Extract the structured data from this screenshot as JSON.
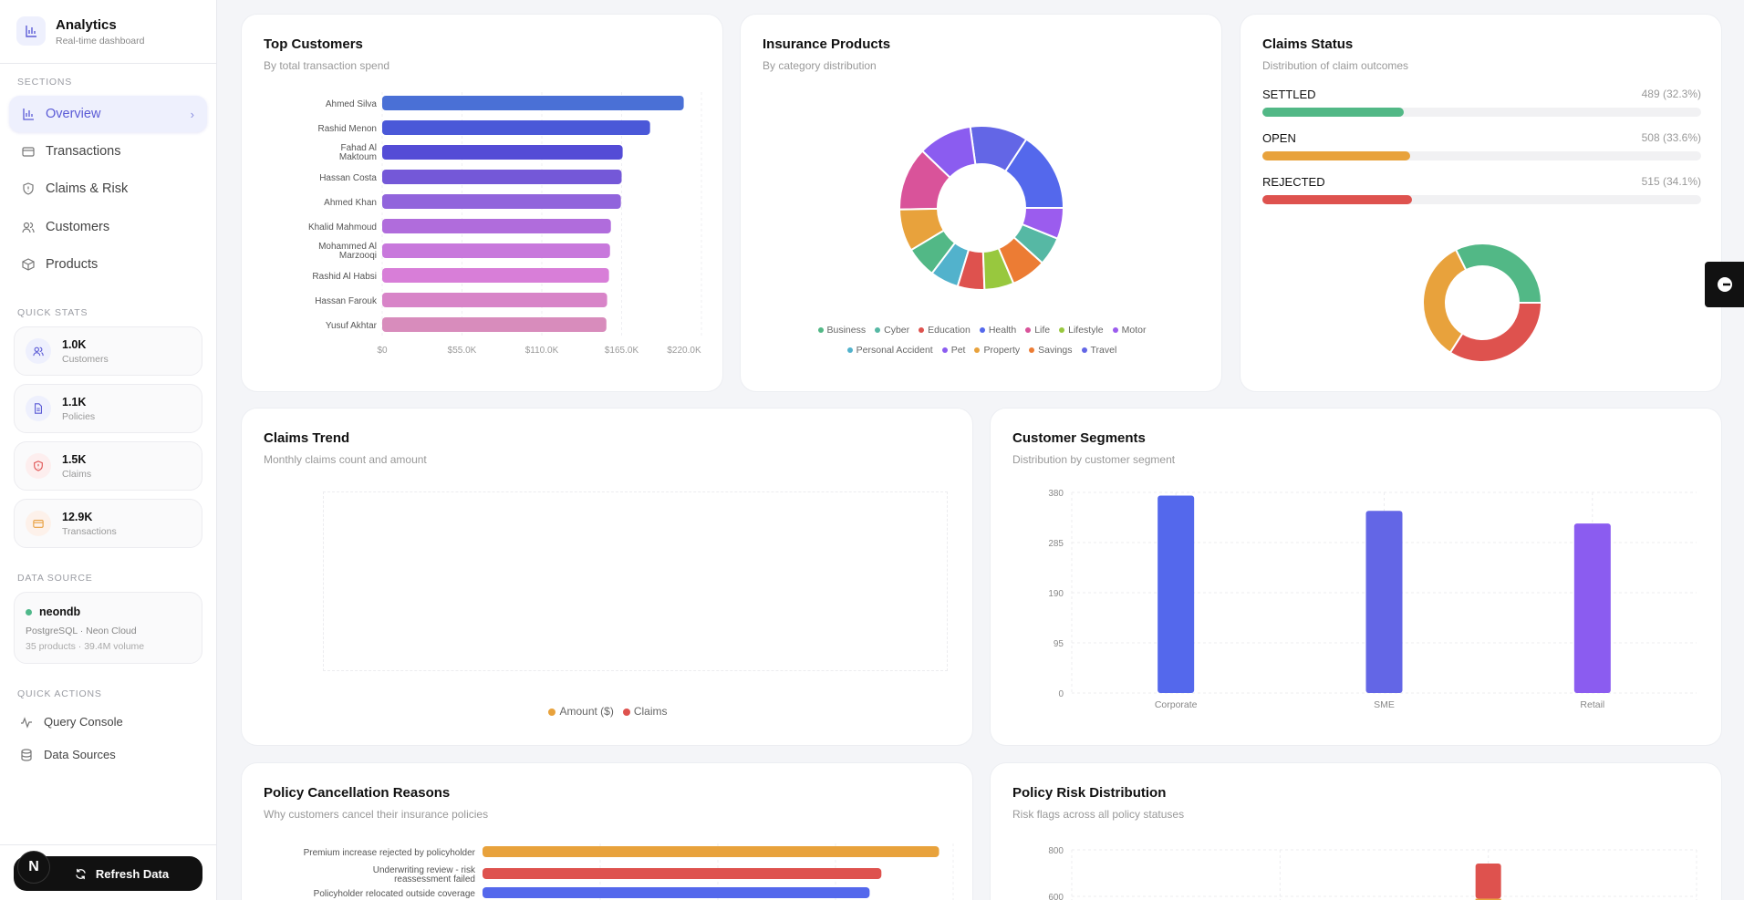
{
  "sidebar": {
    "brand": {
      "title": "Analytics",
      "subtitle": "Real-time dashboard",
      "icon": "bar-chart-icon"
    },
    "sections_label": "SECTIONS",
    "nav": [
      {
        "label": "Overview",
        "icon": "bar-chart-icon",
        "active": true
      },
      {
        "label": "Transactions",
        "icon": "credit-card-icon"
      },
      {
        "label": "Claims & Risk",
        "icon": "shield-alert-icon"
      },
      {
        "label": "Customers",
        "icon": "users-icon"
      },
      {
        "label": "Products",
        "icon": "package-icon"
      }
    ],
    "quick_stats_label": "QUICK STATS",
    "stats": [
      {
        "value": "1.0K",
        "label": "Customers",
        "icon": "users-icon",
        "color": "#5b5bd6"
      },
      {
        "value": "1.1K",
        "label": "Policies",
        "icon": "document-icon",
        "color": "#5b5bd6"
      },
      {
        "value": "1.5K",
        "label": "Claims",
        "icon": "shield-alert-icon",
        "color": "#e05252"
      },
      {
        "value": "12.9K",
        "label": "Transactions",
        "icon": "credit-card-icon",
        "color": "#e8a040"
      }
    ],
    "data_source_label": "DATA SOURCE",
    "data_source": {
      "name": "neondb",
      "line1": "PostgreSQL · Neon Cloud",
      "line2": "35 products · 39.4M volume",
      "status_color": "#4fb88a"
    },
    "quick_actions_label": "QUICK ACTIONS",
    "actions": [
      {
        "label": "Query Console",
        "icon": "activity-icon"
      },
      {
        "label": "Data Sources",
        "icon": "database-icon"
      }
    ],
    "refresh_label": "Refresh Data",
    "dev_badge": "N"
  },
  "cards": {
    "top_customers": {
      "title": "Top Customers",
      "subtitle": "By total transaction spend"
    },
    "insurance_products": {
      "title": "Insurance Products",
      "subtitle": "By category distribution"
    },
    "claims_status": {
      "title": "Claims Status",
      "subtitle": "Distribution of claim outcomes"
    },
    "claims_trend": {
      "title": "Claims Trend",
      "subtitle": "Monthly claims count and amount"
    },
    "customer_segments": {
      "title": "Customer Segments",
      "subtitle": "Distribution by customer segment"
    },
    "cancellation": {
      "title": "Policy Cancellation Reasons",
      "subtitle": "Why customers cancel their insurance policies"
    },
    "risk": {
      "title": "Policy Risk Distribution",
      "subtitle": "Risk flags across all policy statuses"
    }
  },
  "chart_data": [
    {
      "id": "top_customers",
      "type": "bar",
      "orientation": "horizontal",
      "categories": [
        "Ahmed Silva",
        "Rashid Menon",
        "Fahad Al Maktoum",
        "Hassan Costa",
        "Ahmed Khan",
        "Khalid Mahmoud",
        "Mohammed Al Marzooqi",
        "Rashid Al Habsi",
        "Hassan Farouk",
        "Yusuf Akhtar"
      ],
      "values": [
        207800,
        184600,
        165700,
        165000,
        164500,
        157600,
        157000,
        156300,
        155000,
        154500
      ],
      "xlim": [
        0,
        220000
      ],
      "xticks": [
        "$0",
        "$55.0K",
        "$110.0K",
        "$165.0K",
        "$220.0K"
      ],
      "colors": [
        "#4a70d6",
        "#4a58d8",
        "#544cd6",
        "#7458d8",
        "#9164dc",
        "#b06cdc",
        "#c878dc",
        "#d87ed8",
        "#d884c8",
        "#d88cbc"
      ],
      "grid": true
    },
    {
      "id": "insurance_products",
      "type": "pie",
      "donut": true,
      "slices": [
        {
          "name": "Health",
          "share_pct": 15.8,
          "color": "#5468ec"
        },
        {
          "name": "Travel",
          "share_pct": 11.4,
          "color": "#6366e6"
        },
        {
          "name": "Pet",
          "share_pct": 10.6,
          "color": "#8b5cf0"
        },
        {
          "name": "Life",
          "share_pct": 12.5,
          "color": "#d9539a"
        },
        {
          "name": "Property",
          "share_pct": 8.3,
          "color": "#e8a23c"
        },
        {
          "name": "Business",
          "share_pct": 6.1,
          "color": "#52b886"
        },
        {
          "name": "Personal Accident",
          "share_pct": 5.6,
          "color": "#52b2cc"
        },
        {
          "name": "Education",
          "share_pct": 5.3,
          "color": "#de524e"
        },
        {
          "name": "Lifestyle",
          "share_pct": 5.8,
          "color": "#98c83e"
        },
        {
          "name": "Savings",
          "share_pct": 6.9,
          "color": "#ec7c34"
        },
        {
          "name": "Cyber",
          "share_pct": 5.6,
          "color": "#56b8a4"
        },
        {
          "name": "Motor",
          "share_pct": 6.1,
          "color": "#9b5cee"
        }
      ],
      "legend": [
        "Business",
        "Cyber",
        "Education",
        "Health",
        "Life",
        "Lifestyle",
        "Motor",
        "Personal Accident",
        "Pet",
        "Property",
        "Savings",
        "Travel"
      ],
      "legend_position": "bottom"
    },
    {
      "id": "claims_status",
      "type": "pie",
      "donut": true,
      "slices": [
        {
          "name": "SETTLED",
          "value": 489,
          "pct": "32.3%",
          "label": "489 (32.3%)",
          "color": "#52b886"
        },
        {
          "name": "OPEN",
          "value": 508,
          "pct": "33.6%",
          "label": "508 (33.6%)",
          "color": "#e8a23c"
        },
        {
          "name": "REJECTED",
          "value": 515,
          "pct": "34.1%",
          "label": "515 (34.1%)",
          "color": "#de524e"
        }
      ]
    },
    {
      "id": "claims_trend",
      "type": "line",
      "series": [
        {
          "name": "Amount ($)",
          "color": "#e8a23c",
          "values": []
        },
        {
          "name": "Claims",
          "color": "#de524e",
          "values": []
        }
      ],
      "grid": true,
      "legend_position": "bottom"
    },
    {
      "id": "customer_segments",
      "type": "bar",
      "categories": [
        "Corporate",
        "SME",
        "Retail"
      ],
      "values": [
        374,
        345,
        321
      ],
      "ylim": [
        0,
        380
      ],
      "yticks": [
        "0",
        "95",
        "190",
        "285",
        "380"
      ],
      "colors": [
        "#5468ec",
        "#6366e6",
        "#8b5cf0"
      ],
      "grid": true
    },
    {
      "id": "cancellation",
      "type": "bar",
      "orientation": "horizontal",
      "categories": [
        "Premium increase rejected by policyholder",
        "Underwriting review - risk reassessment failed",
        "Policyholder relocated outside coverage"
      ],
      "values": [
        3.88,
        3.39,
        3.29
      ],
      "xlim": [
        0,
        4
      ],
      "colors": [
        "#e8a23c",
        "#de524e",
        "#5468ec"
      ],
      "grid": true
    },
    {
      "id": "risk",
      "type": "bar",
      "stacked": true,
      "ylim_visible": [
        600,
        800
      ],
      "yticks": [
        "600",
        "800"
      ],
      "bars": [
        {
          "category_index": 2,
          "segments": [
            {
              "color": "#e8a23c",
              "top": 590
            },
            {
              "color": "#de524e",
              "top": 741
            }
          ]
        }
      ],
      "grid": true
    }
  ],
  "side_tab": {
    "icon": "chat-bubble-icon"
  }
}
